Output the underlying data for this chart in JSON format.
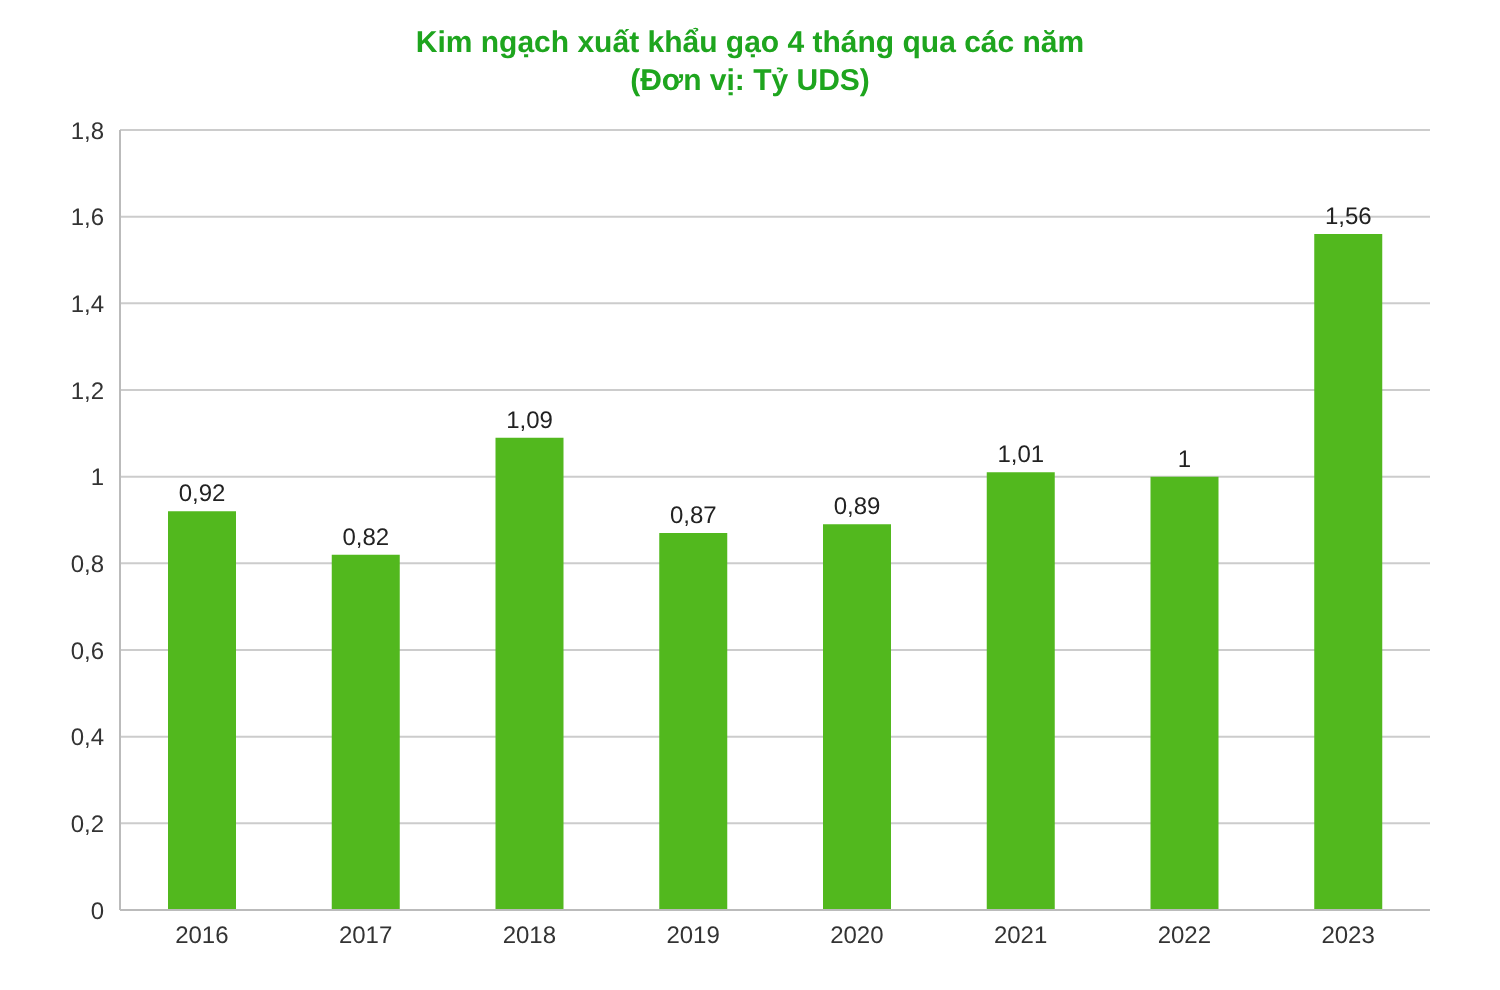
{
  "chart_data": {
    "type": "bar",
    "title": "Kim ngạch xuất khẩu gạo 4 tháng qua các năm",
    "subtitle": "(Đơn vị: Tỷ UDS)",
    "categories": [
      "2016",
      "2017",
      "2018",
      "2019",
      "2020",
      "2021",
      "2022",
      "2023"
    ],
    "values": [
      0.92,
      0.82,
      1.09,
      0.87,
      0.89,
      1.01,
      1,
      1.56
    ],
    "value_labels": [
      "0,92",
      "0,82",
      "1,09",
      "0,87",
      "0,89",
      "1,01",
      "1",
      "1,56"
    ],
    "color": "#52b81e",
    "ylim": [
      0,
      1.8
    ],
    "yticks": [
      0,
      {
        "value": 0.2,
        "label": "0,2"
      },
      {
        "value": 0.4,
        "label": "0,4"
      },
      {
        "value": 0.6,
        "label": "0,6"
      },
      {
        "value": 0.8,
        "label": "0,8"
      },
      1,
      {
        "value": 1.2,
        "label": "1,2"
      },
      {
        "value": 1.4,
        "label": "1,4"
      },
      {
        "value": 1.6,
        "label": "1,6"
      },
      {
        "value": 1.8,
        "label": "1,8"
      }
    ],
    "grid": "y",
    "legend": false
  }
}
